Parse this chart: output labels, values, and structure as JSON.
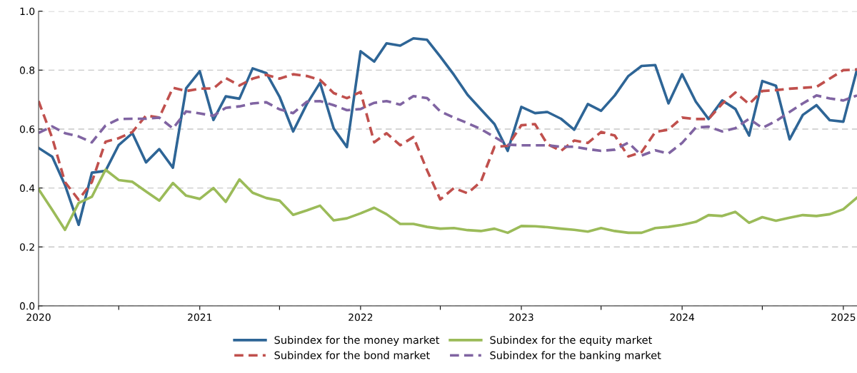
{
  "chart_data": {
    "type": "line",
    "x": [
      "2020-01",
      "2020-02",
      "2020-03",
      "2020-04",
      "2020-05",
      "2020-06",
      "2020-07",
      "2020-08",
      "2020-09",
      "2020-10",
      "2020-11",
      "2020-12",
      "2021-01",
      "2021-02",
      "2021-03",
      "2021-04",
      "2021-05",
      "2021-06",
      "2021-07",
      "2021-08",
      "2021-09",
      "2021-10",
      "2021-11",
      "2021-12",
      "2022-01",
      "2022-02",
      "2022-03",
      "2022-04",
      "2022-05",
      "2022-06",
      "2022-07",
      "2022-08",
      "2022-09",
      "2022-10",
      "2022-11",
      "2022-12",
      "2023-01",
      "2023-02",
      "2023-03",
      "2023-04",
      "2023-05",
      "2023-06",
      "2023-07",
      "2023-08",
      "2023-09",
      "2023-10",
      "2023-11",
      "2023-12",
      "2024-01",
      "2024-02",
      "2024-03",
      "2024-04",
      "2024-05",
      "2024-06",
      "2024-07",
      "2024-08",
      "2024-09",
      "2024-10",
      "2024-11",
      "2024-12",
      "2025-01",
      "2025-02"
    ],
    "series": [
      {
        "name": "Subindex for the money market",
        "color": "#2e6596",
        "line_style": "solid",
        "values": [
          0.536,
          0.506,
          0.41,
          0.275,
          0.452,
          0.458,
          0.546,
          0.586,
          0.487,
          0.532,
          0.469,
          0.738,
          0.796,
          0.631,
          0.711,
          0.703,
          0.806,
          0.79,
          0.71,
          0.592,
          0.685,
          0.757,
          0.602,
          0.539,
          0.864,
          0.829,
          0.891,
          0.883,
          0.908,
          0.903,
          0.846,
          0.784,
          0.716,
          0.667,
          0.617,
          0.526,
          0.675,
          0.654,
          0.658,
          0.635,
          0.598,
          0.685,
          0.662,
          0.714,
          0.78,
          0.814,
          0.817,
          0.687,
          0.786,
          0.693,
          0.634,
          0.697,
          0.668,
          0.578,
          0.763,
          0.747,
          0.565,
          0.648,
          0.681,
          0.63,
          0.625,
          0.802
        ]
      },
      {
        "name": "Subindex for the bond market",
        "color": "#c0504d",
        "line_style": "dashed",
        "values": [
          0.695,
          0.57,
          0.42,
          0.36,
          0.42,
          0.557,
          0.569,
          0.59,
          0.646,
          0.639,
          0.74,
          0.729,
          0.737,
          0.738,
          0.773,
          0.748,
          0.771,
          0.784,
          0.771,
          0.786,
          0.78,
          0.767,
          0.722,
          0.705,
          0.726,
          0.555,
          0.586,
          0.545,
          0.573,
          0.46,
          0.361,
          0.4,
          0.382,
          0.421,
          0.54,
          0.543,
          0.613,
          0.617,
          0.549,
          0.526,
          0.561,
          0.553,
          0.59,
          0.578,
          0.507,
          0.522,
          0.59,
          0.598,
          0.639,
          0.634,
          0.634,
          0.686,
          0.724,
          0.685,
          0.729,
          0.732,
          0.737,
          0.74,
          0.743,
          0.771,
          0.8,
          0.802
        ]
      },
      {
        "name": "Subindex for the equity market",
        "color": "#9bbb59",
        "line_style": "solid",
        "values": [
          0.396,
          0.326,
          0.258,
          0.349,
          0.37,
          0.462,
          0.427,
          0.421,
          0.388,
          0.357,
          0.417,
          0.374,
          0.363,
          0.4,
          0.353,
          0.429,
          0.384,
          0.366,
          0.357,
          0.309,
          0.324,
          0.34,
          0.29,
          0.297,
          0.314,
          0.333,
          0.311,
          0.278,
          0.278,
          0.268,
          0.262,
          0.264,
          0.257,
          0.254,
          0.262,
          0.248,
          0.271,
          0.27,
          0.267,
          0.262,
          0.258,
          0.252,
          0.264,
          0.254,
          0.248,
          0.248,
          0.264,
          0.268,
          0.275,
          0.285,
          0.308,
          0.305,
          0.319,
          0.282,
          0.301,
          0.289,
          0.299,
          0.308,
          0.305,
          0.311,
          0.328,
          0.367
        ]
      },
      {
        "name": "Subindex for the banking market",
        "color": "#8064a2",
        "line_style": "dashed",
        "values": [
          0.587,
          0.609,
          0.586,
          0.575,
          0.555,
          0.612,
          0.634,
          0.635,
          0.635,
          0.639,
          0.602,
          0.66,
          0.653,
          0.645,
          0.672,
          0.677,
          0.687,
          0.691,
          0.667,
          0.654,
          0.693,
          0.695,
          0.681,
          0.664,
          0.668,
          0.689,
          0.695,
          0.683,
          0.712,
          0.705,
          0.66,
          0.639,
          0.62,
          0.6,
          0.573,
          0.547,
          0.545,
          0.545,
          0.545,
          0.54,
          0.54,
          0.532,
          0.526,
          0.53,
          0.554,
          0.51,
          0.528,
          0.517,
          0.553,
          0.605,
          0.608,
          0.592,
          0.603,
          0.635,
          0.604,
          0.627,
          0.658,
          0.687,
          0.714,
          0.704,
          0.697,
          0.714
        ]
      }
    ],
    "xlim": [
      "2020-01",
      "2025-02"
    ],
    "xticks": [
      {
        "value": "2020-01",
        "label": "2020"
      },
      {
        "value": "2020-07",
        "label": null
      },
      {
        "value": "2021-01",
        "label": "2021"
      },
      {
        "value": "2021-07",
        "label": null
      },
      {
        "value": "2022-01",
        "label": "2022"
      },
      {
        "value": "2022-07",
        "label": null
      },
      {
        "value": "2023-01",
        "label": "2023"
      },
      {
        "value": "2023-07",
        "label": null
      },
      {
        "value": "2024-01",
        "label": "2024"
      },
      {
        "value": "2024-07",
        "label": null
      },
      {
        "value": "2025-01",
        "label": "2025"
      }
    ],
    "ylim": [
      0,
      1
    ],
    "yticks": [
      {
        "value": 0,
        "label": "0.0"
      },
      {
        "value": 0.2,
        "label": "0.2"
      },
      {
        "value": 0.4,
        "label": "0.4"
      },
      {
        "value": 0.6,
        "label": "0.6"
      },
      {
        "value": 0.8,
        "label": "0.8"
      },
      {
        "value": 1,
        "label": "1.0"
      }
    ],
    "grid": "y",
    "legend": "bottom"
  }
}
